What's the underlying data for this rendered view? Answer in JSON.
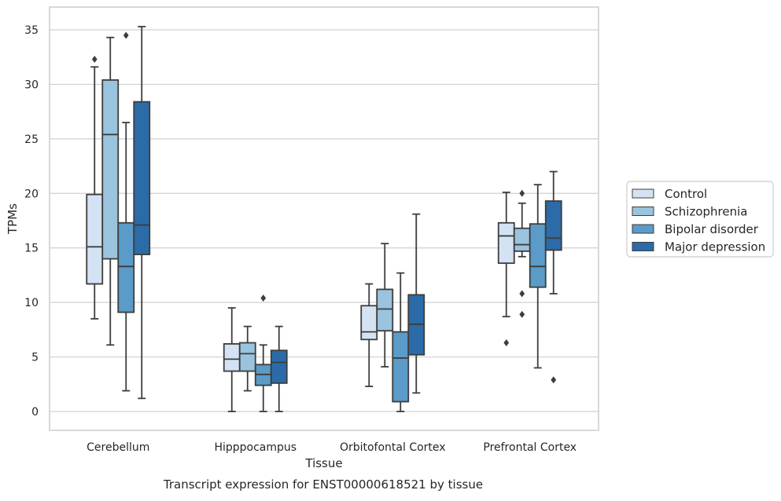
{
  "chart_data": {
    "type": "box",
    "title": "Transcript expression for ENST00000618521 by tissue",
    "xlabel": "Tissue",
    "ylabel": "TPMs",
    "ylim": [
      -1.5,
      37
    ],
    "yticks": [
      0,
      5,
      10,
      15,
      20,
      25,
      30,
      35
    ],
    "grid": "horizontal",
    "legend_position": "right",
    "categories": [
      "Cerebellum",
      "Hipppocampus",
      "Orbitofontal Cortex",
      "Prefrontal Cortex"
    ],
    "series": [
      {
        "name": "Control",
        "color": "#d4e3f3",
        "boxes": [
          {
            "whisker_low": 8.5,
            "q1": 11.7,
            "median": 15.1,
            "q3": 19.9,
            "whisker_high": 31.6,
            "outliers": [
              32.3
            ]
          },
          {
            "whisker_low": 0.0,
            "q1": 3.7,
            "median": 4.8,
            "q3": 6.2,
            "whisker_high": 9.5,
            "outliers": []
          },
          {
            "whisker_low": 2.3,
            "q1": 6.6,
            "median": 7.3,
            "q3": 9.7,
            "whisker_high": 11.7,
            "outliers": []
          },
          {
            "whisker_low": 8.7,
            "q1": 13.6,
            "median": 16.1,
            "q3": 17.3,
            "whisker_high": 20.1,
            "outliers": [
              6.3
            ]
          }
        ]
      },
      {
        "name": "Schizophrenia",
        "color": "#9ac3de",
        "boxes": [
          {
            "whisker_low": 6.1,
            "q1": 14.0,
            "median": 25.4,
            "q3": 30.4,
            "whisker_high": 34.3,
            "outliers": []
          },
          {
            "whisker_low": 1.9,
            "q1": 3.7,
            "median": 5.3,
            "q3": 6.3,
            "whisker_high": 7.8,
            "outliers": []
          },
          {
            "whisker_low": 4.1,
            "q1": 7.4,
            "median": 9.4,
            "q3": 11.2,
            "whisker_high": 15.4,
            "outliers": []
          },
          {
            "whisker_low": 14.2,
            "q1": 14.7,
            "median": 15.3,
            "q3": 16.8,
            "whisker_high": 19.1,
            "outliers": [
              20.0,
              10.8,
              8.9
            ]
          }
        ]
      },
      {
        "name": "Bipolar disorder",
        "color": "#5b9bc9",
        "boxes": [
          {
            "whisker_low": 1.9,
            "q1": 9.1,
            "median": 13.3,
            "q3": 17.3,
            "whisker_high": 26.5,
            "outliers": [
              34.5
            ]
          },
          {
            "whisker_low": 0.0,
            "q1": 2.4,
            "median": 3.4,
            "q3": 4.3,
            "whisker_high": 6.1,
            "outliers": [
              10.4
            ]
          },
          {
            "whisker_low": 0.0,
            "q1": 0.9,
            "median": 4.9,
            "q3": 7.3,
            "whisker_high": 12.7,
            "outliers": []
          },
          {
            "whisker_low": 4.0,
            "q1": 11.4,
            "median": 13.3,
            "q3": 17.2,
            "whisker_high": 20.8,
            "outliers": []
          }
        ]
      },
      {
        "name": "Major depression",
        "color": "#2b6ba8",
        "boxes": [
          {
            "whisker_low": 1.2,
            "q1": 14.4,
            "median": 17.1,
            "q3": 28.4,
            "whisker_high": 35.3,
            "outliers": []
          },
          {
            "whisker_low": 0.0,
            "q1": 2.6,
            "median": 4.5,
            "q3": 5.6,
            "whisker_high": 7.8,
            "outliers": []
          },
          {
            "whisker_low": 1.7,
            "q1": 5.2,
            "median": 8.0,
            "q3": 10.7,
            "whisker_high": 18.1,
            "outliers": []
          },
          {
            "whisker_low": 10.8,
            "q1": 14.8,
            "median": 15.9,
            "q3": 19.3,
            "whisker_high": 22.0,
            "outliers": [
              2.9
            ]
          }
        ]
      }
    ]
  }
}
